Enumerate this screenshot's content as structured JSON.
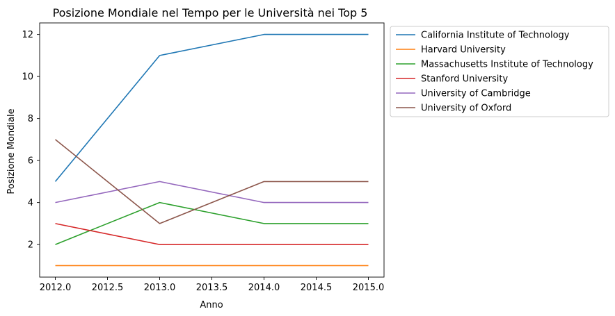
{
  "chart_data": {
    "type": "line",
    "title": "Posizione Mondiale nel Tempo per le Università nei Top 5",
    "xlabel": "Anno",
    "ylabel": "Posizione Mondiale",
    "x": [
      2012,
      2013,
      2014,
      2015
    ],
    "xlim": [
      2011.85,
      2015.15
    ],
    "ylim": [
      0.45,
      12.55
    ],
    "xticks": [
      "2012.0",
      "2012.5",
      "2013.0",
      "2013.5",
      "2014.0",
      "2014.5",
      "2015.0"
    ],
    "xtick_values": [
      2012.0,
      2012.5,
      2013.0,
      2013.5,
      2014.0,
      2014.5,
      2015.0
    ],
    "yticks": [
      "2",
      "4",
      "6",
      "8",
      "10",
      "12"
    ],
    "ytick_values": [
      2,
      4,
      6,
      8,
      10,
      12
    ],
    "grid": false,
    "legend_position": "outside right, top",
    "series": [
      {
        "name": "California Institute of Technology",
        "color": "#1f77b4",
        "values": [
          5,
          11,
          12,
          12
        ]
      },
      {
        "name": "Harvard University",
        "color": "#ff7f0e",
        "values": [
          1,
          1,
          1,
          1
        ]
      },
      {
        "name": "Massachusetts Institute of Technology",
        "color": "#2ca02c",
        "values": [
          2,
          4,
          3,
          3
        ]
      },
      {
        "name": "Stanford University",
        "color": "#d62728",
        "values": [
          3,
          2,
          2,
          2
        ]
      },
      {
        "name": "University of Cambridge",
        "color": "#9467bd",
        "values": [
          4,
          5,
          4,
          4
        ]
      },
      {
        "name": "University of Oxford",
        "color": "#8c564b",
        "values": [
          7,
          3,
          5,
          5
        ]
      }
    ]
  }
}
